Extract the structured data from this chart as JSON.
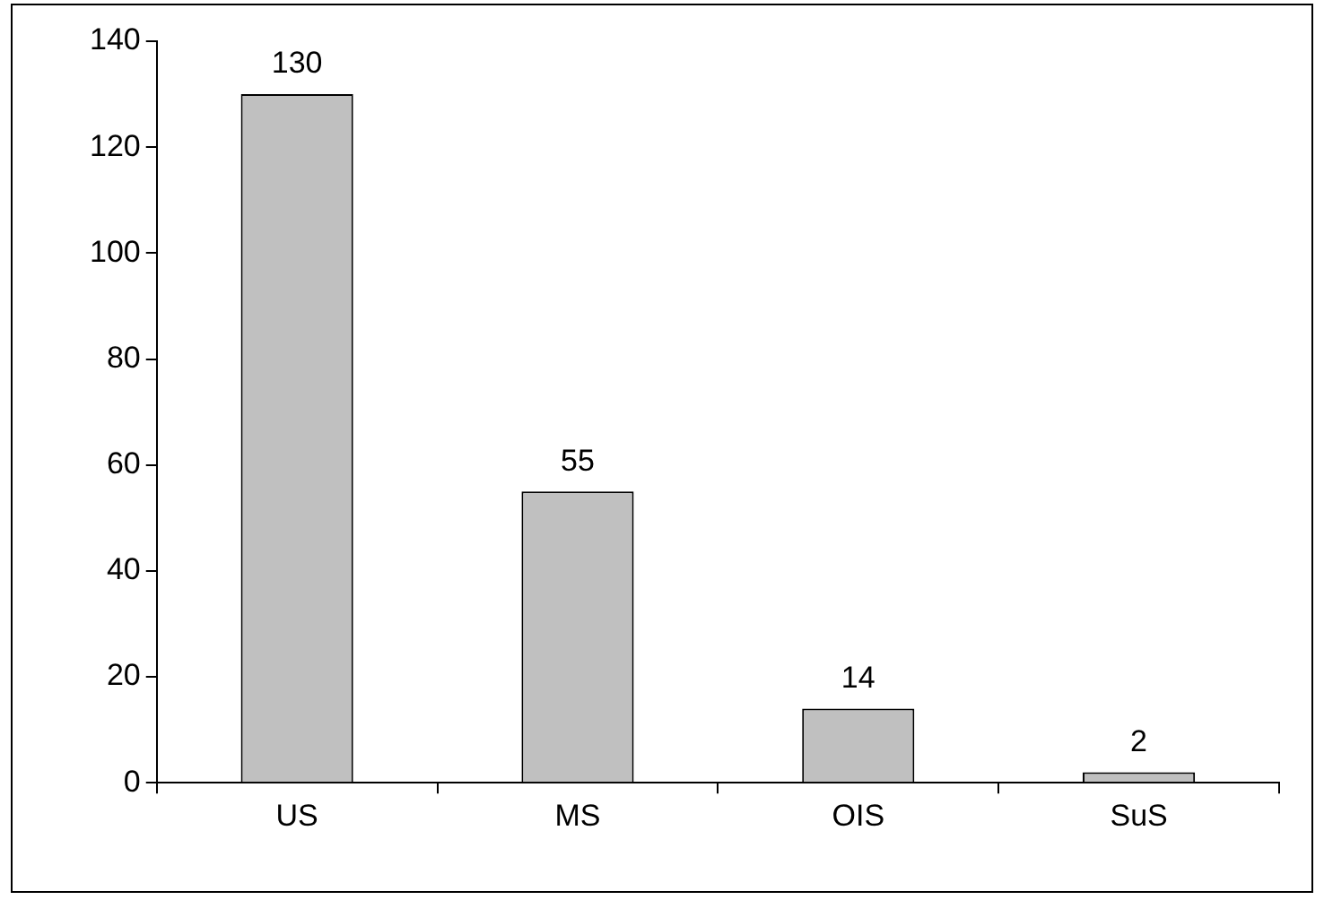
{
  "chart_data": {
    "type": "bar",
    "categories": [
      "US",
      "MS",
      "OIS",
      "SuS"
    ],
    "values": [
      130,
      55,
      14,
      2
    ],
    "color": "#c0c0c0",
    "ylim": [
      0,
      140
    ],
    "yticks": [
      0,
      20,
      40,
      60,
      80,
      100,
      120,
      140
    ],
    "grid": false,
    "legend": false,
    "data_labels": true
  }
}
